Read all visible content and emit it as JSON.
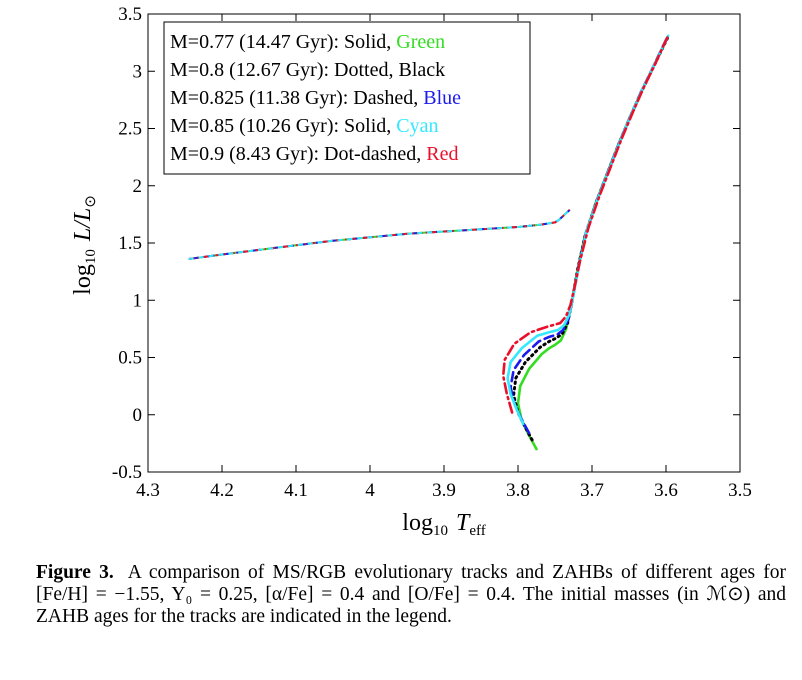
{
  "chart_data": {
    "type": "line",
    "title": "",
    "xlabel": {
      "main": "log",
      "sub": "10",
      "var": "T",
      "varsub": "eff"
    },
    "ylabel": {
      "main": "log",
      "sub": "10",
      "var": "L/L",
      "sym": "⊙"
    },
    "xlim": [
      4.3,
      3.5
    ],
    "ylim": [
      -0.5,
      3.5
    ],
    "x_reversed": true,
    "xticks": [
      4.3,
      4.2,
      4.1,
      4.0,
      3.9,
      3.8,
      3.7,
      3.6,
      3.5
    ],
    "xtick_labels": [
      "4.3",
      "4.2",
      "4.1",
      "4",
      "3.9",
      "3.8",
      "3.7",
      "3.6",
      "3.5"
    ],
    "yticks": [
      -0.5,
      0,
      0.5,
      1,
      1.5,
      2,
      2.5,
      3,
      3.5
    ],
    "ytick_labels": [
      "-0.5",
      "0",
      "0.5",
      "1",
      "1.5",
      "2",
      "2.5",
      "3",
      "3.5"
    ],
    "grid": false,
    "legend_position": "top-left",
    "series": [
      {
        "name": "M=0.77 (14.47 Gyr): Solid,",
        "color_name": "Green",
        "color": "#33dd22",
        "dash": "solid",
        "x": [
          3.775,
          3.786,
          3.795,
          3.8,
          3.797,
          3.785,
          3.768,
          3.758,
          3.75,
          3.742,
          3.735,
          3.728,
          3.72,
          3.71,
          3.695,
          3.68,
          3.665,
          3.65,
          3.635,
          3.62,
          3.605,
          3.598
        ],
        "y": [
          -0.3,
          -0.17,
          -0.05,
          0.1,
          0.25,
          0.4,
          0.53,
          0.58,
          0.61,
          0.65,
          0.75,
          0.95,
          1.25,
          1.55,
          1.85,
          2.1,
          2.35,
          2.58,
          2.8,
          3.0,
          3.2,
          3.3
        ]
      },
      {
        "name": "M=0.8 (12.67 Gyr): Dotted,",
        "color_name": "Black",
        "color": "#000000",
        "dash": "dotted",
        "x": [
          3.781,
          3.791,
          3.8,
          3.806,
          3.803,
          3.79,
          3.77,
          3.758,
          3.748,
          3.74,
          3.733,
          3.727,
          3.719,
          3.709,
          3.694,
          3.679,
          3.664,
          3.649,
          3.634,
          3.619,
          3.604,
          3.598
        ],
        "y": [
          -0.22,
          -0.1,
          0.02,
          0.17,
          0.32,
          0.46,
          0.59,
          0.64,
          0.67,
          0.71,
          0.8,
          0.99,
          1.28,
          1.57,
          1.86,
          2.11,
          2.36,
          2.59,
          2.81,
          3.01,
          3.21,
          3.29
        ]
      },
      {
        "name": "M=0.825 (11.38 Gyr): Dashed,",
        "color_name": "Blue",
        "color": "#1a1aee",
        "dash": "dashed",
        "x": [
          3.785,
          3.796,
          3.805,
          3.81,
          3.806,
          3.792,
          3.772,
          3.758,
          3.747,
          3.739,
          3.732,
          3.726,
          3.718,
          3.708,
          3.693,
          3.678,
          3.663,
          3.648,
          3.633,
          3.618,
          3.604,
          3.598
        ],
        "y": [
          -0.16,
          -0.03,
          0.1,
          0.24,
          0.39,
          0.52,
          0.64,
          0.68,
          0.7,
          0.74,
          0.83,
          1.02,
          1.3,
          1.59,
          1.88,
          2.13,
          2.38,
          2.61,
          2.83,
          3.03,
          3.22,
          3.3
        ]
      },
      {
        "name": "M=0.85 (10.26 Gyr): Solid,",
        "color_name": "Cyan",
        "color": "#33e8ff",
        "dash": "solid",
        "x": [
          3.793,
          3.802,
          3.81,
          3.814,
          3.81,
          3.795,
          3.774,
          3.758,
          3.746,
          3.738,
          3.731,
          3.725,
          3.717,
          3.707,
          3.692,
          3.677,
          3.662,
          3.647,
          3.632,
          3.617,
          3.603,
          3.597
        ],
        "y": [
          -0.08,
          0.05,
          0.18,
          0.32,
          0.46,
          0.58,
          0.69,
          0.72,
          0.74,
          0.78,
          0.87,
          1.05,
          1.32,
          1.61,
          1.89,
          2.14,
          2.39,
          2.62,
          2.84,
          3.04,
          3.23,
          3.31
        ]
      },
      {
        "name": "M=0.9 (8.43 Gyr): Dot-dashed,",
        "color_name": "Red",
        "color": "#e8102a",
        "dash": "dashdot",
        "x": [
          3.808,
          3.815,
          3.82,
          3.818,
          3.805,
          3.783,
          3.76,
          3.743,
          3.735,
          3.729,
          3.724,
          3.716,
          3.705,
          3.69,
          3.675,
          3.66,
          3.645,
          3.63,
          3.615,
          3.603,
          3.597
        ],
        "y": [
          0.02,
          0.18,
          0.34,
          0.48,
          0.62,
          0.72,
          0.77,
          0.8,
          0.86,
          0.96,
          1.1,
          1.35,
          1.63,
          1.91,
          2.16,
          2.41,
          2.64,
          2.86,
          3.06,
          3.23,
          3.31
        ]
      }
    ],
    "zahb": {
      "colors": [
        "#33dd22",
        "#1a1aee",
        "#e8102a",
        "#33e8ff"
      ],
      "x": [
        4.245,
        4.2,
        4.15,
        4.1,
        4.05,
        4.0,
        3.95,
        3.9,
        3.85,
        3.8,
        3.77,
        3.75,
        3.745,
        3.74,
        3.735,
        3.73
      ],
      "y": [
        1.36,
        1.4,
        1.44,
        1.48,
        1.52,
        1.55,
        1.58,
        1.6,
        1.62,
        1.64,
        1.66,
        1.68,
        1.7,
        1.73,
        1.76,
        1.79
      ]
    }
  },
  "caption": {
    "label": "Figure 3.",
    "text": "A comparison of MS/RGB evolutionary tracks and ZAHBs of different ages for [Fe/H] = −1.55, Y₀ = 0.25, [α/Fe] = 0.4 and [O/Fe] = 0.4. The initial masses (in ℳ⊙) and ZAHB ages for the tracks are indicated in the legend."
  }
}
